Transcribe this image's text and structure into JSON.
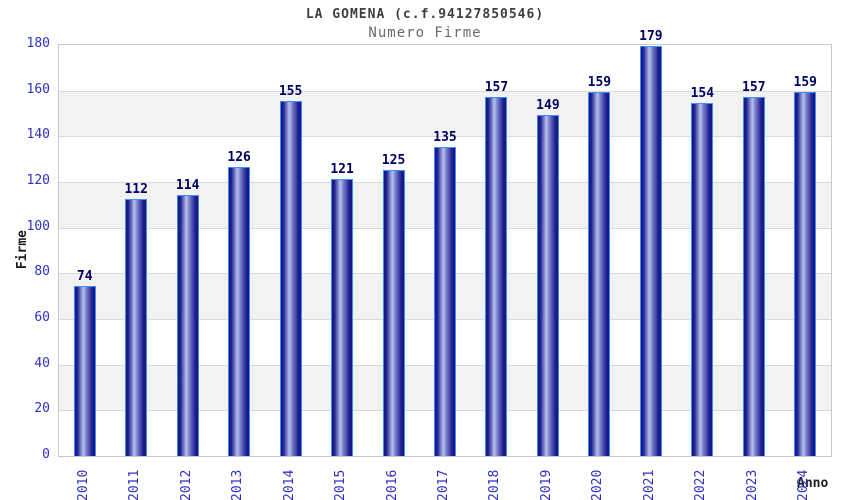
{
  "header": {
    "title": "LA GOMENA (c.f.94127850546)",
    "subtitle": "Numero Firme"
  },
  "chart_data": {
    "type": "bar",
    "title": "LA GOMENA (c.f.94127850546)",
    "subtitle": "Numero Firme",
    "xlabel": "Anno",
    "ylabel": "Firme",
    "categories": [
      "2010",
      "2011",
      "2012",
      "2013",
      "2014",
      "2015",
      "2016",
      "2017",
      "2018",
      "2019",
      "2020",
      "2021",
      "2022",
      "2023",
      "2024"
    ],
    "values": [
      74,
      112,
      114,
      126,
      155,
      121,
      125,
      135,
      157,
      149,
      159,
      179,
      154,
      157,
      159
    ],
    "ylim": [
      0,
      180
    ],
    "ytick_step": 20,
    "grid": true,
    "legend": "none",
    "band_colors": [
      "#ffffff",
      "#f2f2f2"
    ],
    "colors": {
      "bar_border": "#4090ff",
      "bar_dark": "#15157c",
      "bar_light": "#b9c1ec",
      "value_label": "#000060",
      "tick_label": "#3030c4",
      "grid_line": "#d9d9d9",
      "plot_border": "#c9c9c9",
      "title": "#3f3f3f",
      "subtitle": "#6a6a6a",
      "axis_title": "#1e1e1e"
    }
  }
}
